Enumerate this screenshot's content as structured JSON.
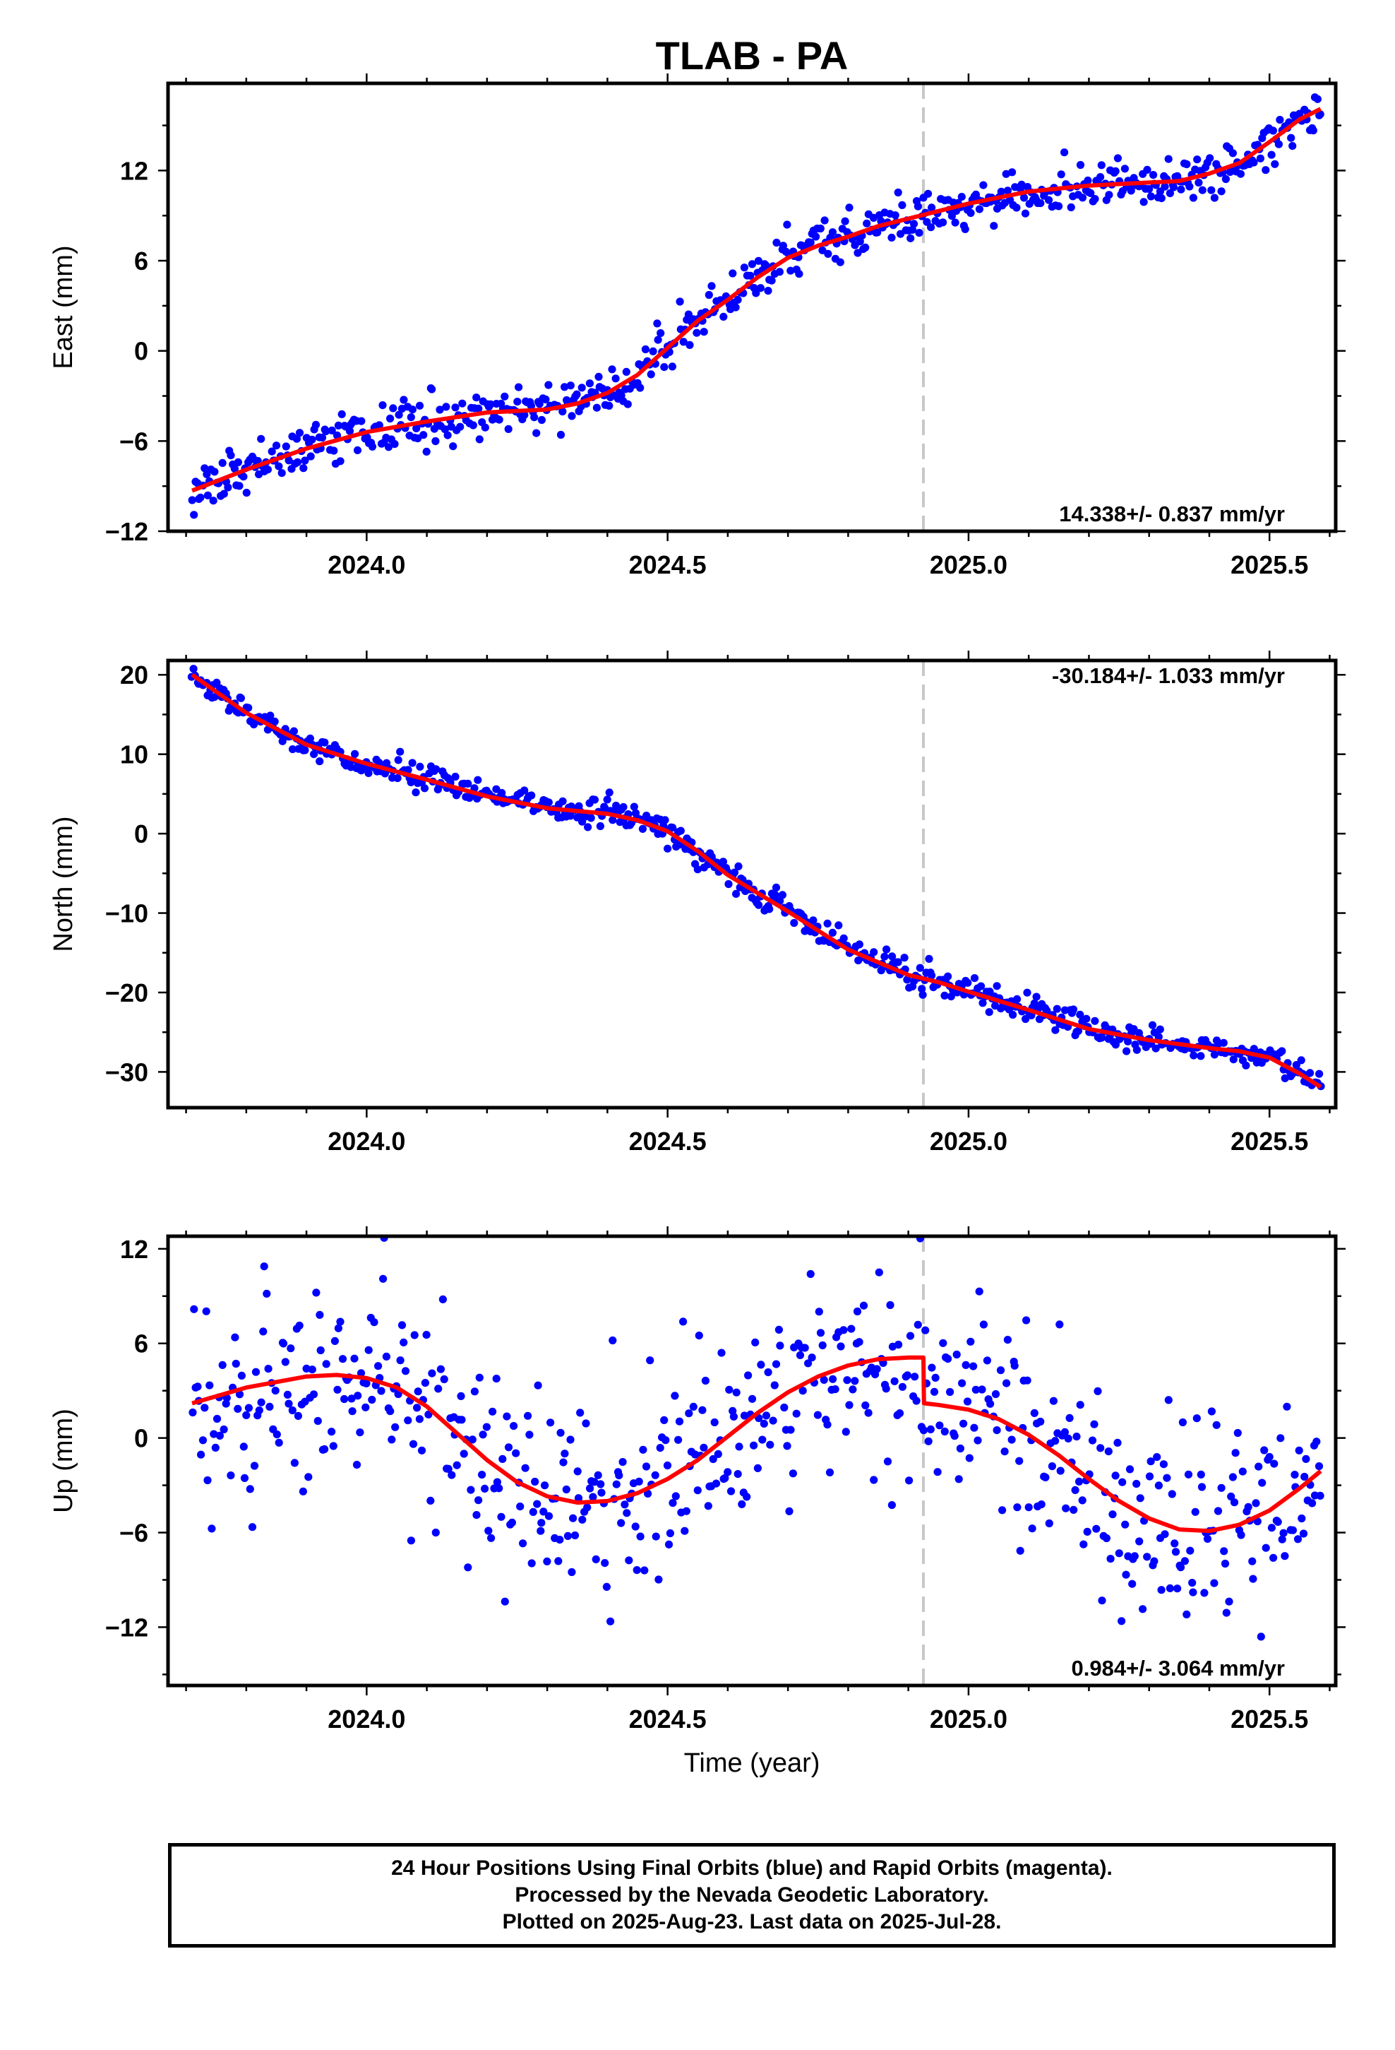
{
  "title": "TLAB - PA",
  "footer": {
    "line1": "24 Hour Positions Using Final Orbits (blue) and Rapid Orbits (magenta).",
    "line2": "Processed by the Nevada Geodetic Laboratory.",
    "line3": "Plotted on 2025-Aug-23. Last data on 2025-Jul-28."
  },
  "colors": {
    "final_orbit_points": "#0000ff",
    "model_fit": "#ff0000",
    "event_line": "#c8c8c8",
    "frame": "#000000"
  },
  "chart_data": [
    {
      "type": "scatter",
      "component": "East",
      "ylabel": "East (mm)",
      "xlabel": "",
      "xlim": [
        2023.67,
        2025.61
      ],
      "ylim": [
        -12,
        17.8
      ],
      "xticks": [
        2024.0,
        2024.5,
        2025.0,
        2025.5
      ],
      "xtick_labels": [
        "2024.0",
        "2024.5",
        "2025.0",
        "2025.5"
      ],
      "yticks": [
        -12,
        -6,
        0,
        6,
        12
      ],
      "ytick_labels": [
        "−12",
        "−6",
        "0",
        "6",
        "12"
      ],
      "rate_label": "14.338+/- 0.837 mm/yr",
      "rate_label_position": "bottom-right",
      "event_lines": [
        2024.925
      ],
      "model_offsets": [],
      "model_fit": {
        "x": [
          2023.71,
          2023.8,
          2023.9,
          2024.0,
          2024.1,
          2024.2,
          2024.3,
          2024.35,
          2024.4,
          2024.45,
          2024.5,
          2024.55,
          2024.6,
          2024.65,
          2024.7,
          2024.75,
          2024.8,
          2024.85,
          2024.9,
          2024.95,
          2025.0,
          2025.05,
          2025.1,
          2025.15,
          2025.2,
          2025.25,
          2025.3,
          2025.35,
          2025.4,
          2025.45,
          2025.5,
          2025.55,
          2025.585
        ],
        "y": [
          -9.3,
          -7.9,
          -6.5,
          -5.4,
          -4.7,
          -4.1,
          -3.9,
          -3.5,
          -2.8,
          -1.6,
          0.2,
          2.0,
          3.4,
          4.9,
          6.2,
          7.0,
          7.6,
          8.3,
          8.8,
          9.3,
          9.8,
          10.2,
          10.6,
          10.8,
          11.0,
          11.1,
          11.2,
          11.3,
          11.8,
          12.5,
          13.9,
          15.4,
          16.1
        ]
      },
      "series": [
        {
          "name": "",
          "residual_sd": 0.75,
          "seed": 11
        }
      ]
    },
    {
      "type": "scatter",
      "component": "North",
      "ylabel": "North (mm)",
      "xlabel": "",
      "xlim": [
        2023.67,
        2025.61
      ],
      "ylim": [
        -34.5,
        21.8
      ],
      "xticks": [
        2024.0,
        2024.5,
        2025.0,
        2025.5
      ],
      "xtick_labels": [
        "2024.0",
        "2024.5",
        "2025.0",
        "2025.5"
      ],
      "yticks": [
        -30,
        -20,
        -10,
        0,
        10,
        20
      ],
      "ytick_labels": [
        "−30",
        "−20",
        "−10",
        "0",
        "10",
        "20"
      ],
      "rate_label": "-30.184+/- 1.033 mm/yr",
      "rate_label_position": "top-right",
      "event_lines": [
        2024.925
      ],
      "model_offsets": [],
      "model_fit": {
        "x": [
          2023.71,
          2023.8,
          2023.9,
          2024.0,
          2024.1,
          2024.2,
          2024.3,
          2024.4,
          2024.45,
          2024.5,
          2024.55,
          2024.6,
          2024.7,
          2024.8,
          2024.9,
          2024.95,
          2025.0,
          2025.1,
          2025.2,
          2025.3,
          2025.4,
          2025.45,
          2025.5,
          2025.55,
          2025.585
        ],
        "y": [
          20.0,
          15.2,
          11.2,
          8.8,
          6.8,
          4.7,
          3.2,
          2.5,
          1.7,
          0.3,
          -2.2,
          -5.2,
          -9.8,
          -14.6,
          -17.8,
          -18.7,
          -19.9,
          -22.2,
          -24.6,
          -26.0,
          -27.0,
          -27.4,
          -28.2,
          -30.2,
          -31.9
        ]
      },
      "series": [
        {
          "name": "",
          "residual_sd": 0.8,
          "seed": 23
        }
      ]
    },
    {
      "type": "scatter",
      "component": "Up",
      "ylabel": "Up (mm)",
      "xlabel": "Time (year)",
      "xlim": [
        2023.67,
        2025.61
      ],
      "ylim": [
        -15.7,
        12.8
      ],
      "xticks": [
        2024.0,
        2024.5,
        2025.0,
        2025.5
      ],
      "xtick_labels": [
        "2024.0",
        "2024.5",
        "2025.0",
        "2025.5"
      ],
      "yticks": [
        -12,
        -6,
        0,
        6,
        12
      ],
      "ytick_labels": [
        "−12",
        "−6",
        "0",
        "6",
        "12"
      ],
      "rate_label": "0.984+/- 3.064 mm/yr",
      "rate_label_position": "bottom-right",
      "event_lines": [
        2024.925
      ],
      "model_offsets": [
        2024.925
      ],
      "model_fit": {
        "x": [
          2023.71,
          2023.8,
          2023.9,
          2023.95,
          2024.0,
          2024.05,
          2024.1,
          2024.15,
          2024.2,
          2024.25,
          2024.3,
          2024.35,
          2024.4,
          2024.45,
          2024.5,
          2024.55,
          2024.6,
          2024.65,
          2024.7,
          2024.75,
          2024.8,
          2024.85,
          2024.9,
          2024.925,
          2024.926,
          2024.95,
          2025.0,
          2025.05,
          2025.1,
          2025.15,
          2025.2,
          2025.25,
          2025.3,
          2025.35,
          2025.4,
          2025.45,
          2025.5,
          2025.55,
          2025.585
        ],
        "y": [
          2.2,
          3.2,
          3.9,
          4.0,
          3.8,
          3.2,
          2.0,
          0.3,
          -1.4,
          -2.8,
          -3.7,
          -4.1,
          -4.0,
          -3.5,
          -2.6,
          -1.4,
          0.1,
          1.6,
          2.9,
          3.9,
          4.6,
          5.0,
          5.1,
          5.1,
          2.2,
          2.1,
          1.8,
          1.2,
          0.2,
          -1.1,
          -2.6,
          -4.0,
          -5.1,
          -5.8,
          -5.9,
          -5.5,
          -4.6,
          -3.2,
          -2.1
        ]
      },
      "series": [
        {
          "name": "",
          "residual_sd": 3.3,
          "seed": 37
        }
      ]
    }
  ]
}
